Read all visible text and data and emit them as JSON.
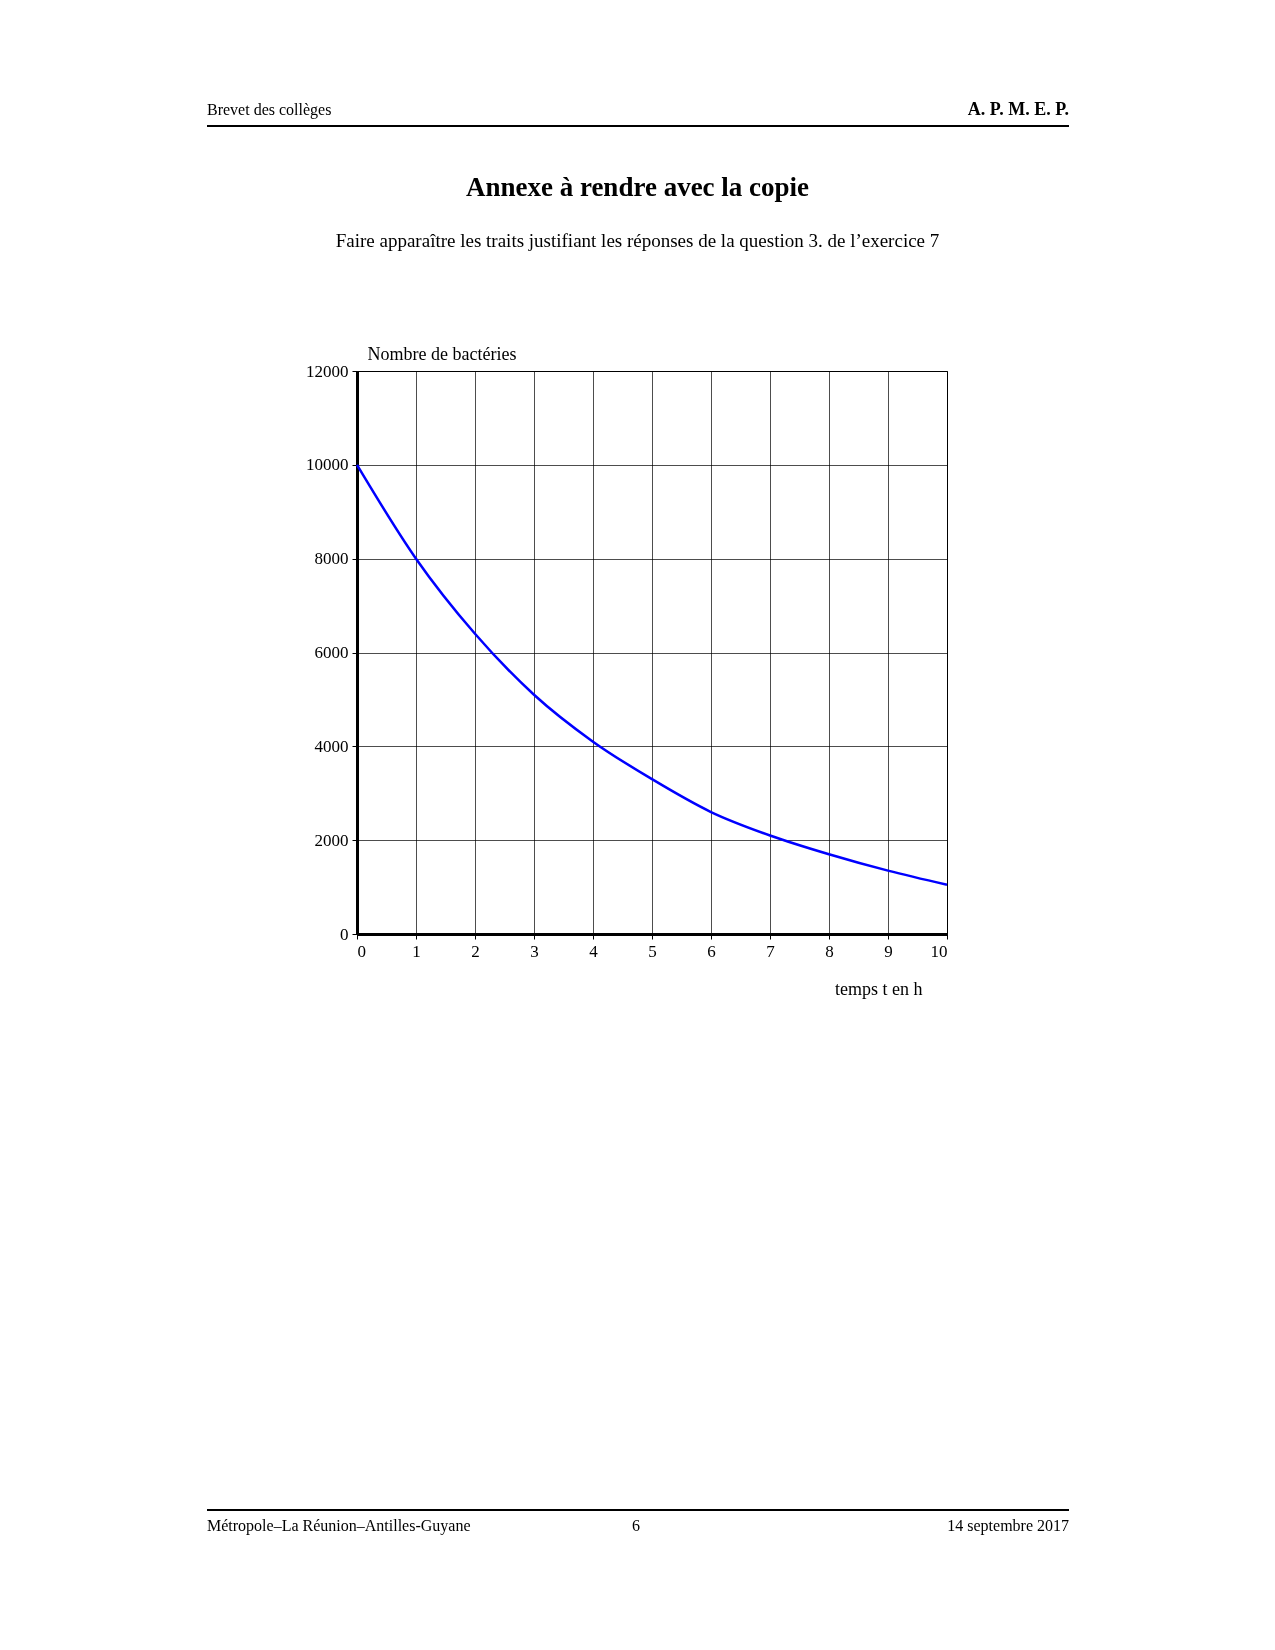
{
  "chart_data": {
    "type": "line",
    "title": "Annexe à rendre avec la copie",
    "subtitle": "Faire apparaître les traits justifiant les réponses de la question 3. de l’exercice 7",
    "xlabel": "temps t en h",
    "ylabel": "Nombre de bactéries",
    "annotations": [
      "Brevet des collèges",
      "A. P. M. E. P.",
      "Métropole–La Réunion–Antilles-Guyane",
      "6",
      "14 septembre 2017"
    ],
    "x": [
      0,
      1,
      2,
      3,
      4,
      5,
      6,
      7,
      8,
      9,
      10
    ],
    "series": [
      {
        "color": "#0000ff",
        "values": [
          10000,
          8000,
          6400,
          5100,
          4100,
          3300,
          2600,
          2100,
          1700,
          1350,
          1050
        ]
      }
    ],
    "xlim": [
      0,
      10
    ],
    "xticks": [
      0,
      1,
      2,
      3,
      4,
      5,
      6,
      7,
      8,
      9,
      10
    ],
    "ylim": [
      0,
      12000
    ],
    "yticks": [
      0,
      2000,
      4000,
      6000,
      8000,
      10000,
      12000
    ],
    "grid": true,
    "legend": false,
    "marker": "none",
    "line_style": "solid"
  }
}
